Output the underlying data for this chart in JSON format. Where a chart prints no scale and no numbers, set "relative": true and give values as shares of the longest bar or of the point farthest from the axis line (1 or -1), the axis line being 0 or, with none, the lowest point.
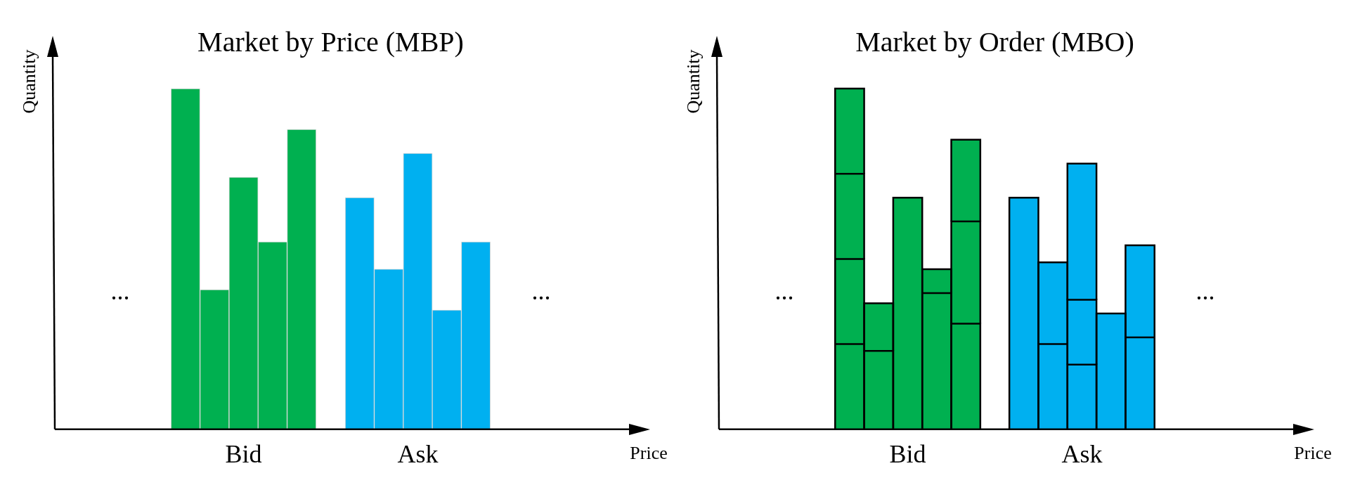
{
  "chart_data": [
    {
      "type": "bar",
      "title": "Market by Price (MBP)",
      "xlabel": "Price",
      "ylabel": "Quantity",
      "relative": true,
      "categories": [
        null,
        null,
        null,
        null,
        null,
        null,
        "Bid",
        null,
        null,
        null,
        null,
        null,
        "Ask",
        null,
        null,
        null,
        null,
        null,
        null
      ],
      "values": [
        null,
        null,
        null,
        null,
        1,
        0.41,
        0.74,
        0.55,
        0.88,
        null,
        0.68,
        0.47,
        0.81,
        0.35,
        0.55,
        null,
        null,
        null,
        null
      ],
      "colors": [
        "#00b050",
        "#00b050",
        "#00b050",
        "#00b050",
        "#00b050",
        "#00b050",
        "#00b050",
        "#00b050",
        "#00b050",
        "#00b050",
        "#00b0f0",
        "#00b0f0",
        "#00b0f0",
        "#00b0f0",
        "#00b0f0",
        "#00b0f0",
        "#00b0f0",
        "#00b0f0",
        "#00b0f0"
      ],
      "annotations": [
        "...",
        "..."
      ]
    },
    {
      "type": "bar",
      "title": "Market by Order (MBO)",
      "xlabel": "Price",
      "ylabel": "Quantity",
      "relative": true,
      "stacked": true,
      "categories": [
        null,
        null,
        null,
        null,
        null,
        null,
        "Bid",
        null,
        null,
        null,
        null,
        null,
        "Ask",
        null,
        null,
        null,
        null,
        null,
        null
      ],
      "series": [
        {
          "values": [
            null,
            null,
            null,
            null,
            0.25,
            0.23,
            0.68,
            0.4,
            0.31,
            null,
            0.68,
            0.25,
            0.19,
            0.34,
            0.27,
            null,
            null,
            null,
            null
          ],
          "colors": [
            "#00b050",
            "#00b050",
            "#00b050",
            "#00b050",
            "#00b050",
            "#00b050",
            "#00b050",
            "#00b050",
            "#00b050",
            "#00b050",
            "#00b0f0",
            "#00b0f0",
            "#00b0f0",
            "#00b0f0",
            "#00b0f0",
            "#00b0f0",
            "#00b0f0",
            "#00b0f0",
            "#00b0f0"
          ]
        },
        {
          "values": [
            null,
            null,
            null,
            null,
            0.25,
            0.14,
            null,
            0.07,
            0.3,
            null,
            null,
            0.24,
            0.19,
            null,
            0.27,
            null,
            null,
            null,
            null
          ],
          "colors": [
            "#00b050",
            "#00b050",
            "#00b050",
            "#00b050",
            "#00b050",
            "#00b050",
            "#00b050",
            "#00b050",
            "#00b050",
            "#00b050",
            "#00b0f0",
            "#00b0f0",
            "#00b0f0",
            "#00b0f0",
            "#00b0f0",
            "#00b0f0",
            "#00b0f0",
            "#00b0f0",
            "#00b0f0"
          ]
        },
        {
          "values": [
            null,
            null,
            null,
            null,
            0.25,
            null,
            null,
            null,
            0.24,
            null,
            null,
            null,
            0.4,
            null,
            null,
            null,
            null,
            null,
            null
          ],
          "colors": [
            "#00b050",
            "#00b050",
            "#00b050",
            "#00b050",
            "#00b050",
            "#00b050",
            "#00b050",
            "#00b050",
            "#00b050",
            "#00b050",
            "#00b0f0",
            "#00b0f0",
            "#00b0f0",
            "#00b0f0",
            "#00b0f0",
            "#00b0f0",
            "#00b0f0",
            "#00b0f0",
            "#00b0f0"
          ]
        },
        {
          "values": [
            null,
            null,
            null,
            null,
            0.25,
            null,
            null,
            null,
            null,
            null,
            null,
            null,
            null,
            null,
            null,
            null,
            null,
            null,
            null
          ],
          "colors": [
            "#00b050",
            "#00b050",
            "#00b050",
            "#00b050",
            "#00b050",
            "#00b050",
            "#00b050",
            "#00b050",
            "#00b050",
            "#00b050",
            "#00b0f0",
            "#00b0f0",
            "#00b0f0",
            "#00b0f0",
            "#00b0f0",
            "#00b0f0",
            "#00b0f0",
            "#00b0f0",
            "#00b0f0"
          ]
        }
      ],
      "annotations": [
        "...",
        "..."
      ]
    }
  ]
}
